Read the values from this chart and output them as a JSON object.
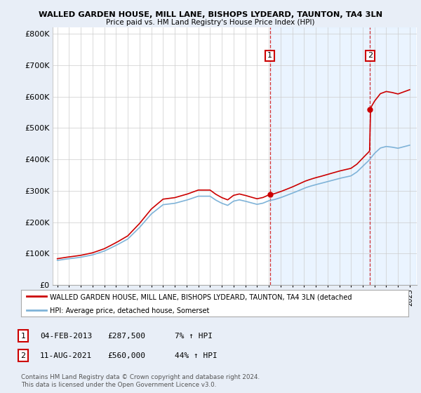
{
  "title": "WALLED GARDEN HOUSE, MILL LANE, BISHOPS LYDEARD, TAUNTON, TA4 3LN",
  "subtitle": "Price paid vs. HM Land Registry's House Price Index (HPI)",
  "bg_color": "#e8eef7",
  "plot_bg_color": "#ffffff",
  "ylim": [
    0,
    820000
  ],
  "yticks": [
    0,
    100000,
    200000,
    300000,
    400000,
    500000,
    600000,
    700000,
    800000
  ],
  "ytick_labels": [
    "£0",
    "£100K",
    "£200K",
    "£300K",
    "£400K",
    "£500K",
    "£600K",
    "£700K",
    "£800K"
  ],
  "sale1_year": 2013.09,
  "sale1_price": 287500,
  "sale2_year": 2021.61,
  "sale2_price": 560000,
  "hpi_color": "#7fb3d8",
  "price_color": "#cc0000",
  "shade_color": "#ddeeff",
  "legend_label1": "WALLED GARDEN HOUSE, MILL LANE, BISHOPS LYDEARD, TAUNTON, TA4 3LN (detached",
  "legend_label2": "HPI: Average price, detached house, Somerset",
  "note1_label": "1",
  "note1_date": "04-FEB-2013",
  "note1_price": "£287,500",
  "note1_hpi": "7% ↑ HPI",
  "note2_label": "2",
  "note2_date": "11-AUG-2021",
  "note2_price": "£560,000",
  "note2_hpi": "44% ↑ HPI",
  "footer": "Contains HM Land Registry data © Crown copyright and database right 2024.\nThis data is licensed under the Open Government Licence v3.0."
}
